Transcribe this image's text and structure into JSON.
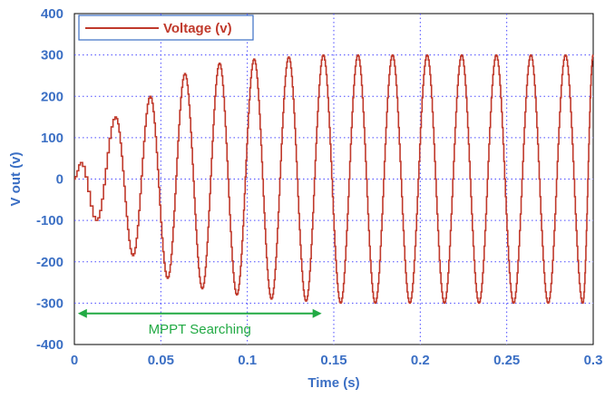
{
  "chart_data": {
    "type": "line",
    "xlabel": "Time (s)",
    "ylabel": "V out (v)",
    "xlim": [
      0,
      0.3
    ],
    "ylim": [
      -400,
      400
    ],
    "xticks": [
      0,
      0.05,
      0.1,
      0.15,
      0.2,
      0.25,
      0.3
    ],
    "xtick_labels": [
      "0",
      "0.05",
      "0.1",
      "0.15",
      "0.2",
      "0.25",
      "0.3"
    ],
    "yticks": [
      -400,
      -300,
      -200,
      -100,
      0,
      100,
      200,
      300,
      400
    ],
    "ytick_labels": [
      "-400",
      "-300",
      "-200",
      "-100",
      "0",
      "100",
      "200",
      "300",
      "400"
    ],
    "grid": true,
    "legend_position": "top-left",
    "series": [
      {
        "name": "Voltage (v)",
        "color": "#c0392b",
        "frequency_hz": 50,
        "peaks": [
          {
            "x": 0.004,
            "y": 40
          },
          {
            "x": 0.013,
            "y": -100
          },
          {
            "x": 0.024,
            "y": 150
          },
          {
            "x": 0.034,
            "y": -185
          },
          {
            "x": 0.044,
            "y": 200
          },
          {
            "x": 0.054,
            "y": -240
          },
          {
            "x": 0.064,
            "y": 255
          },
          {
            "x": 0.074,
            "y": -265
          },
          {
            "x": 0.084,
            "y": 280
          },
          {
            "x": 0.094,
            "y": -280
          },
          {
            "x": 0.104,
            "y": 290
          },
          {
            "x": 0.114,
            "y": -290
          },
          {
            "x": 0.124,
            "y": 295
          },
          {
            "x": 0.134,
            "y": -295
          },
          {
            "x": 0.144,
            "y": 300
          },
          {
            "x": 0.154,
            "y": -300
          },
          {
            "x": 0.164,
            "y": 300
          },
          {
            "x": 0.174,
            "y": -300
          },
          {
            "x": 0.184,
            "y": 300
          },
          {
            "x": 0.194,
            "y": -300
          },
          {
            "x": 0.204,
            "y": 300
          },
          {
            "x": 0.214,
            "y": -300
          },
          {
            "x": 0.224,
            "y": 300
          },
          {
            "x": 0.234,
            "y": -300
          },
          {
            "x": 0.244,
            "y": 300
          },
          {
            "x": 0.254,
            "y": -300
          },
          {
            "x": 0.264,
            "y": 300
          },
          {
            "x": 0.274,
            "y": -300
          },
          {
            "x": 0.284,
            "y": 300
          },
          {
            "x": 0.294,
            "y": -300
          },
          {
            "x": 0.3,
            "y": 300
          }
        ]
      }
    ],
    "annotations": [
      {
        "text": "MPPT Searching",
        "x_start": 0.002,
        "x_end": 0.143,
        "y": -325,
        "color": "#22aa44"
      }
    ]
  },
  "colors": {
    "axis_text": "#3b6fc4",
    "grid": "#4a4aff",
    "line": "#c0392b",
    "annotation": "#22aa44"
  }
}
